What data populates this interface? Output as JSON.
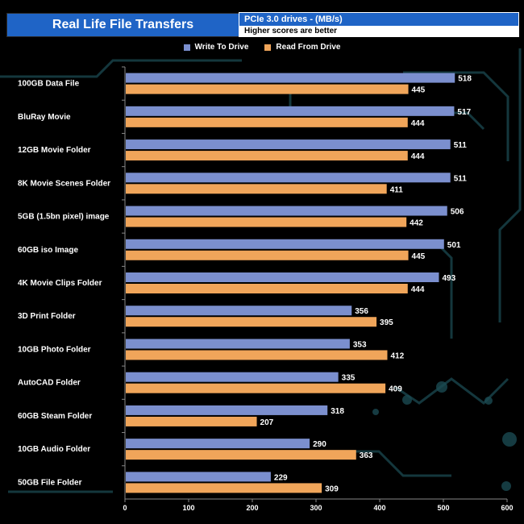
{
  "title": "Real Life File Transfers",
  "subtitle": "PCIe 3.0 drives - (MB/s)",
  "note": "Higher scores are better",
  "colors": {
    "write": "#7b8fce",
    "read": "#f0a55a",
    "accent": "#1f64c6"
  },
  "chart_data": {
    "type": "bar",
    "orientation": "horizontal",
    "categories": [
      "100GB Data File",
      "BluRay Movie",
      "12GB Movie Folder",
      "8K Movie Scenes Folder",
      "5GB (1.5bn pixel) image",
      "60GB iso Image",
      "4K Movie Clips Folder",
      "3D Print Folder",
      "10GB Photo Folder",
      "AutoCAD Folder",
      "60GB Steam Folder",
      "10GB Audio Folder",
      "50GB File Folder"
    ],
    "series": [
      {
        "name": "Write To  Drive",
        "values": [
          518,
          517,
          511,
          511,
          506,
          501,
          493,
          356,
          353,
          335,
          318,
          290,
          229
        ]
      },
      {
        "name": "Read From  Drive",
        "values": [
          445,
          444,
          444,
          411,
          442,
          445,
          444,
          395,
          412,
          409,
          207,
          363,
          309
        ]
      }
    ],
    "xlim": [
      0,
      600
    ],
    "xticks": [
      0,
      100,
      200,
      300,
      400,
      500,
      600
    ],
    "legend_position": "top-center",
    "grid": false
  }
}
